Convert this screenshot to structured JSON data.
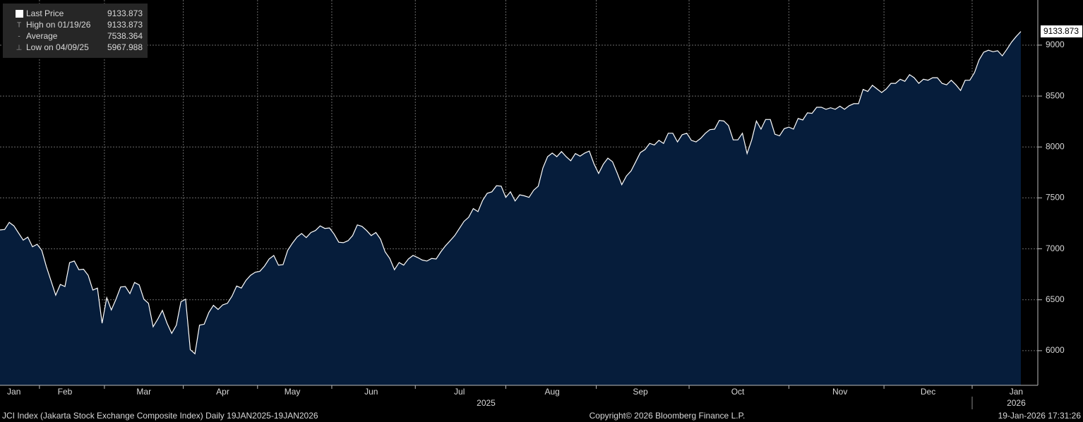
{
  "chart_data": {
    "type": "area",
    "footer": {
      "left": "JCI Index (Jakarta Stock Exchange Composite Index) Daily 19JAN2025-19JAN2026",
      "center": "Copyright© 2026 Bloomberg Finance L.P.",
      "right": "19-Jan-2026 17:31:26"
    },
    "years": [
      "2025",
      "2026"
    ],
    "stats": [
      {
        "label": "High on 01/19/26",
        "value": 9133.873
      },
      {
        "label": "Average",
        "value": 7538.364
      },
      {
        "label": "Low on 04/09/25",
        "value": 5967.988
      }
    ],
    "categories": [
      null,
      null,
      null,
      "Jan",
      null,
      null,
      null,
      null,
      null,
      null,
      null,
      null,
      null,
      null,
      "Feb",
      null,
      null,
      null,
      null,
      null,
      null,
      null,
      null,
      null,
      null,
      null,
      null,
      null,
      null,
      null,
      null,
      "Mar",
      null,
      null,
      null,
      null,
      null,
      null,
      null,
      null,
      null,
      null,
      null,
      null,
      null,
      null,
      null,
      null,
      "Apr",
      null,
      null,
      null,
      null,
      null,
      null,
      null,
      null,
      null,
      null,
      null,
      null,
      null,
      null,
      "May",
      null,
      null,
      null,
      null,
      null,
      null,
      null,
      null,
      null,
      null,
      null,
      null,
      null,
      null,
      null,
      null,
      "Jun",
      null,
      null,
      null,
      null,
      null,
      null,
      null,
      null,
      null,
      null,
      null,
      null,
      null,
      null,
      null,
      null,
      null,
      null,
      "Jul",
      null,
      null,
      null,
      null,
      null,
      null,
      null,
      null,
      null,
      null,
      null,
      null,
      null,
      null,
      null,
      null,
      null,
      null,
      null,
      "Aug",
      null,
      null,
      null,
      null,
      null,
      null,
      null,
      null,
      null,
      null,
      null,
      null,
      null,
      null,
      null,
      null,
      null,
      null,
      "Sep",
      null,
      null,
      null,
      null,
      null,
      null,
      null,
      null,
      null,
      null,
      null,
      null,
      null,
      null,
      null,
      null,
      null,
      null,
      null,
      null,
      "Oct",
      null,
      null,
      null,
      null,
      null,
      null,
      null,
      null,
      null,
      null,
      null,
      null,
      null,
      null,
      null,
      null,
      null,
      null,
      null,
      null,
      null,
      "Nov",
      null,
      null,
      null,
      null,
      null,
      null,
      null,
      null,
      null,
      null,
      null,
      null,
      null,
      null,
      null,
      null,
      null,
      null,
      "Dec",
      null,
      null,
      null,
      null,
      null,
      null,
      null,
      null,
      null,
      null,
      null,
      null,
      null,
      null,
      null,
      null,
      null,
      null,
      "Jan",
      null
    ],
    "series": [
      {
        "name": "Last Price",
        "color": "#ffffff",
        "fill": "#061d3b",
        "values": [
          7185,
          7190,
          7260,
          7225,
          7155,
          7085,
          7115,
          7020,
          7045,
          6985,
          6825,
          6685,
          6545,
          6650,
          6630,
          6865,
          6880,
          6795,
          6800,
          6740,
          6595,
          6615,
          6270,
          6520,
          6400,
          6505,
          6625,
          6630,
          6560,
          6670,
          6645,
          6505,
          6465,
          6235,
          6310,
          6395,
          6270,
          6170,
          6250,
          6480,
          6505,
          6010,
          5970,
          6250,
          6260,
          6375,
          6445,
          6405,
          6450,
          6465,
          6535,
          6635,
          6615,
          6690,
          6740,
          6770,
          6780,
          6830,
          6900,
          6935,
          6840,
          6845,
          6985,
          7055,
          7115,
          7150,
          7110,
          7160,
          7180,
          7225,
          7200,
          7205,
          7145,
          7065,
          7060,
          7080,
          7130,
          7235,
          7220,
          7180,
          7130,
          7160,
          7095,
          6970,
          6905,
          6795,
          6865,
          6840,
          6900,
          6935,
          6915,
          6890,
          6880,
          6905,
          6900,
          6970,
          7030,
          7080,
          7130,
          7200,
          7270,
          7310,
          7395,
          7365,
          7475,
          7545,
          7560,
          7620,
          7615,
          7505,
          7560,
          7470,
          7530,
          7520,
          7505,
          7575,
          7615,
          7795,
          7905,
          7940,
          7905,
          7955,
          7905,
          7865,
          7935,
          7910,
          7940,
          7960,
          7835,
          7740,
          7830,
          7890,
          7855,
          7745,
          7630,
          7715,
          7765,
          7855,
          7945,
          7975,
          8035,
          8020,
          8065,
          8035,
          8135,
          8135,
          8050,
          8120,
          8135,
          8065,
          8050,
          8085,
          8135,
          8170,
          8175,
          8260,
          8255,
          8210,
          8070,
          8070,
          8135,
          7935,
          8070,
          8255,
          8175,
          8270,
          8270,
          8125,
          8110,
          8180,
          8195,
          8175,
          8280,
          8265,
          8335,
          8330,
          8390,
          8390,
          8370,
          8385,
          8370,
          8400,
          8370,
          8405,
          8425,
          8425,
          8565,
          8545,
          8605,
          8570,
          8535,
          8570,
          8625,
          8625,
          8665,
          8645,
          8710,
          8680,
          8625,
          8665,
          8655,
          8680,
          8680,
          8625,
          8610,
          8655,
          8610,
          8555,
          8655,
          8655,
          8730,
          8855,
          8930,
          8950,
          8935,
          8945,
          8895,
          8960,
          9030,
          9085,
          9133.873
        ]
      }
    ],
    "ylim": [
      5660,
      9443
    ],
    "yticks": [
      6000,
      6500,
      7000,
      7500,
      8000,
      8500,
      9000
    ],
    "grid": true
  }
}
